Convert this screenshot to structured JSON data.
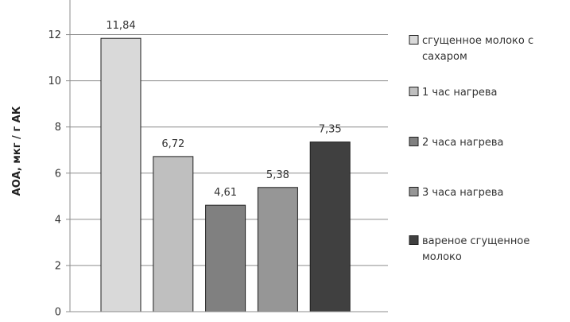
{
  "chart_data": {
    "type": "bar",
    "title": "",
    "xlabel": "",
    "ylabel": "АОА, мкг / г АК",
    "ylim": [
      0,
      13.5
    ],
    "yticks": [
      0,
      2,
      4,
      6,
      8,
      10,
      12
    ],
    "grid": true,
    "legend_position": "right",
    "series": [
      {
        "name": "сгущенное молоко с сахаром",
        "value": 11.84,
        "label": "11,84",
        "color": "#d9d9d9",
        "legend_lines": [
          "сгущенное молоко с",
          "сахаром"
        ]
      },
      {
        "name": "1 час нагрева",
        "value": 6.72,
        "label": "6,72",
        "color": "#bfbfbf",
        "legend_lines": [
          "1 час нагрева"
        ]
      },
      {
        "name": "2 часа нагрева",
        "value": 4.61,
        "label": "4,61",
        "color": "#808080",
        "legend_lines": [
          "2 часа нагрева"
        ]
      },
      {
        "name": "3 часа нагрева",
        "value": 5.38,
        "label": "5,38",
        "color": "#969696",
        "legend_lines": [
          "3 часа нагрева"
        ]
      },
      {
        "name": "вареное сгущенное молоко",
        "value": 7.35,
        "label": "7,35",
        "color": "#404040",
        "legend_lines": [
          "вареное сгущенное",
          "молоко"
        ]
      }
    ]
  }
}
